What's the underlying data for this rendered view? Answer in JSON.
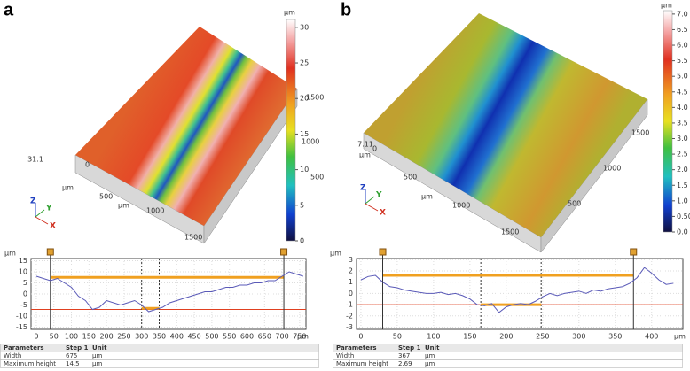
{
  "panels": [
    {
      "label": "a",
      "surface": {
        "z_label": "31.1",
        "unit": "µm",
        "axis_unit": "µm",
        "x_ticks": [
          "0",
          "500",
          "1000",
          "1500"
        ],
        "y_ticks": [
          "500",
          "1000",
          "1500"
        ],
        "axes": [
          "Z",
          "Y",
          "X"
        ],
        "colorbar": {
          "unit": "µm",
          "lim": [
            0,
            31.1
          ],
          "ticks": [
            0,
            5,
            10,
            15,
            20,
            25,
            30
          ]
        }
      },
      "profile": {
        "type": "line",
        "y_unit": "µm",
        "x_unit": "µm",
        "color": "#5a5ab8",
        "xlim": [
          -15,
          768
        ],
        "ylim": [
          -16,
          16
        ],
        "xticks": [
          0,
          50,
          100,
          150,
          200,
          250,
          300,
          350,
          400,
          450,
          500,
          550,
          600,
          650,
          700,
          750
        ],
        "yticks": [
          -15,
          -10,
          -5,
          0,
          5,
          10,
          15
        ],
        "x": [
          0,
          20,
          40,
          60,
          80,
          100,
          120,
          140,
          160,
          180,
          200,
          220,
          240,
          260,
          280,
          300,
          320,
          340,
          360,
          380,
          400,
          420,
          440,
          460,
          480,
          500,
          520,
          540,
          560,
          580,
          600,
          620,
          640,
          660,
          680,
          700,
          720,
          740,
          760
        ],
        "values": [
          8,
          7,
          6,
          7,
          5,
          3,
          -1,
          -3,
          -7,
          -6,
          -3,
          -4,
          -5,
          -4,
          -3,
          -5,
          -8,
          -7,
          -6,
          -4,
          -3,
          -2,
          -1,
          0,
          1,
          1,
          2,
          3,
          3,
          4,
          4,
          5,
          5,
          6,
          6,
          8,
          10,
          9,
          8
        ],
        "cursors": [
          40,
          705
        ],
        "dashed": [
          300,
          350
        ],
        "top_level": 7.5,
        "step_level": -6.5,
        "ref_level": -7
      },
      "table": {
        "header": [
          "Parameters",
          "Step 1",
          "Unit"
        ],
        "rows": [
          [
            "Width",
            "675",
            "µm"
          ],
          [
            "Maximum height",
            "14.5",
            "µm"
          ]
        ]
      }
    },
    {
      "label": "b",
      "surface": {
        "z_label": "7.11",
        "unit": "µm",
        "axis_unit": "µm",
        "x_ticks": [
          "0",
          "500",
          "1000",
          "1500"
        ],
        "y_ticks": [
          "500",
          "1000",
          "1500"
        ],
        "axes": [
          "Z",
          "Y",
          "X"
        ],
        "colorbar": {
          "unit": "µm",
          "lim": [
            0,
            7.11
          ],
          "ticks": [
            {
              "value": 0,
              "label": "0.0"
            },
            {
              "value": 0.5,
              "label": "0.50"
            },
            {
              "value": 1,
              "label": "1.0"
            },
            {
              "value": 1.5,
              "label": "1.5"
            },
            {
              "value": 2,
              "label": "2.0"
            },
            {
              "value": 2.5,
              "label": "2.5"
            },
            {
              "value": 3,
              "label": "3.0"
            },
            {
              "value": 3.5,
              "label": "3.5"
            },
            {
              "value": 4,
              "label": "4.0"
            },
            {
              "value": 4.5,
              "label": "4.5"
            },
            {
              "value": 5,
              "label": "5.0"
            },
            {
              "value": 5.5,
              "label": "5.5"
            },
            {
              "value": 6,
              "label": "6.0"
            },
            {
              "value": 6.5,
              "label": "6.5"
            },
            {
              "value": 7,
              "label": "7.0"
            }
          ]
        }
      },
      "profile": {
        "type": "line",
        "y_unit": "µm",
        "x_unit": "µm",
        "color": "#5a5ab8",
        "xlim": [
          -6,
          443
        ],
        "ylim": [
          -3.2,
          3.1
        ],
        "xticks": [
          0,
          50,
          100,
          150,
          200,
          250,
          300,
          350,
          400
        ],
        "yticks": [
          -3,
          -2,
          -1,
          0,
          1,
          2,
          3
        ],
        "x": [
          0,
          10,
          20,
          30,
          40,
          50,
          60,
          70,
          80,
          90,
          100,
          110,
          120,
          130,
          140,
          150,
          160,
          170,
          180,
          190,
          200,
          210,
          220,
          230,
          240,
          250,
          260,
          270,
          280,
          290,
          300,
          310,
          320,
          330,
          340,
          350,
          360,
          370,
          380,
          390,
          400,
          410,
          420,
          430
        ],
        "values": [
          1.2,
          1.5,
          1.6,
          1.0,
          0.6,
          0.5,
          0.3,
          0.2,
          0.1,
          0.0,
          0.0,
          0.1,
          -0.1,
          0.0,
          -0.2,
          -0.5,
          -1.0,
          -1.1,
          -0.9,
          -1.7,
          -1.2,
          -1.0,
          -0.9,
          -1.0,
          -0.7,
          -0.3,
          0.0,
          -0.2,
          0.0,
          0.1,
          0.2,
          0.0,
          0.3,
          0.2,
          0.4,
          0.5,
          0.6,
          0.9,
          1.4,
          2.3,
          1.8,
          1.2,
          0.8,
          0.9
        ],
        "cursors": [
          30,
          375
        ],
        "dashed": [
          165,
          248
        ],
        "top_level": 1.6,
        "step_level": -1.0,
        "ref_level": -1.0
      },
      "table": {
        "header": [
          "Parameters",
          "Step 1",
          "Unit"
        ],
        "rows": [
          [
            "Width",
            "367",
            "µm"
          ],
          [
            "Maximum height",
            "2.69",
            "µm"
          ]
        ]
      }
    }
  ]
}
